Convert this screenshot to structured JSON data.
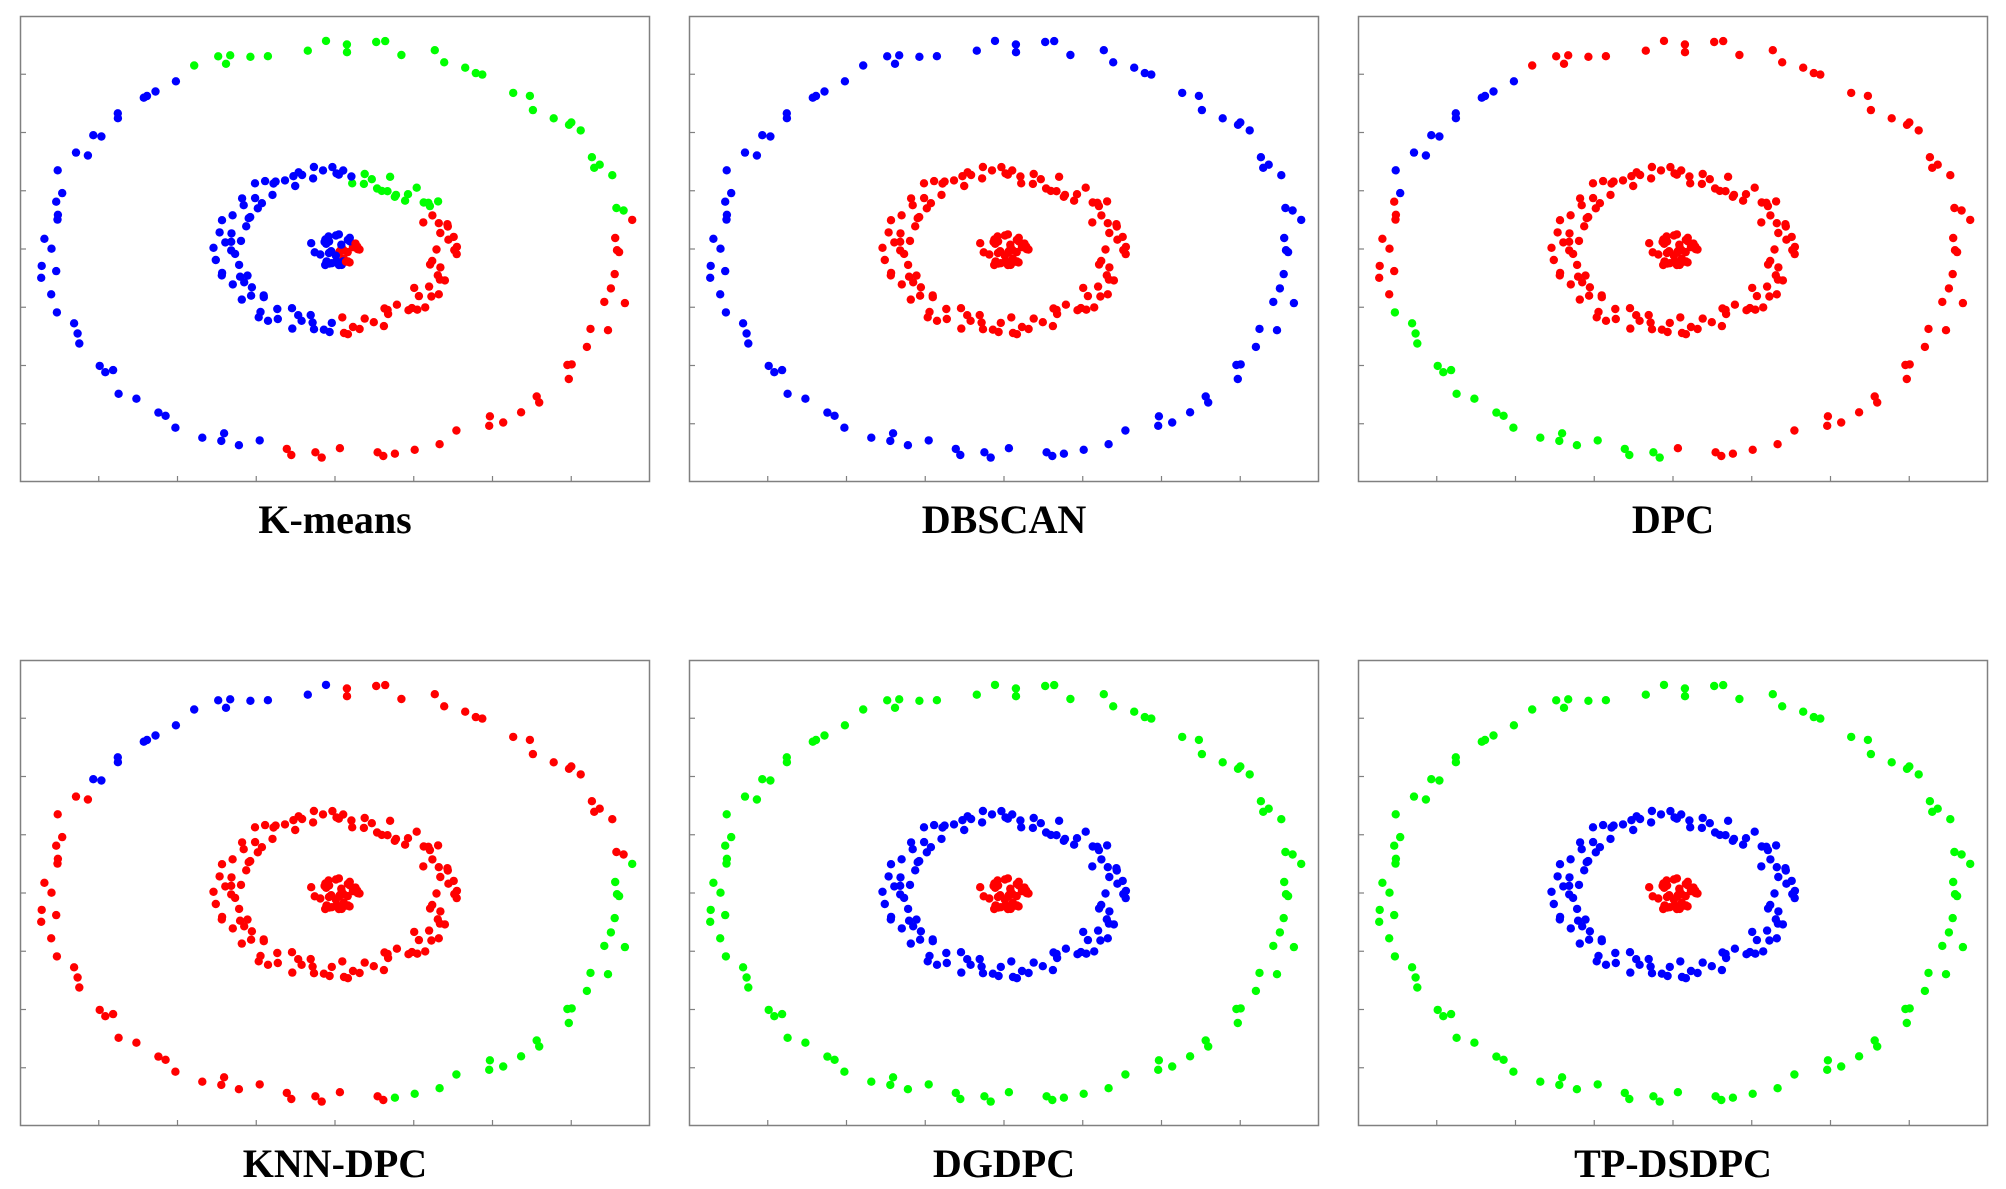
{
  "colors": {
    "red": "#ff0000",
    "blue": "#0000ff",
    "green": "#00ff00",
    "axis": "#808080"
  },
  "cluster_color_order": [
    "red",
    "blue",
    "green"
  ],
  "chart_data": [
    {
      "type": "scatter",
      "title": "K-means",
      "xlim": [
        -7.5,
        7.5
      ],
      "ylim": [
        -7.5,
        7.5
      ],
      "grid": false,
      "rings": [
        {
          "name": "core",
          "radius": 0.3,
          "count": 40
        },
        {
          "name": "inner",
          "radius": 2.6,
          "count": 120
        },
        {
          "name": "outer",
          "radius": 6.9,
          "count": 100
        }
      ],
      "labels": {
        "core": [
          {
            "from": 0,
            "to": 360,
            "cluster": "blue"
          },
          {
            "from": -60,
            "to": 30,
            "cluster": "red"
          }
        ],
        "inner": [
          {
            "from": 0,
            "to": 360,
            "cluster": "blue"
          },
          {
            "from": -90,
            "to": 30,
            "cluster": "red"
          },
          {
            "from": 30,
            "to": 80,
            "cluster": "green"
          }
        ],
        "outer": [
          {
            "from": 0,
            "to": 360,
            "cluster": "blue"
          },
          {
            "from": -100,
            "to": 8,
            "cluster": "red"
          },
          {
            "from": 8,
            "to": 120,
            "cluster": "green"
          }
        ]
      }
    },
    {
      "type": "scatter",
      "title": "DBSCAN",
      "xlim": [
        -7.5,
        7.5
      ],
      "ylim": [
        -7.5,
        7.5
      ],
      "grid": false,
      "rings": [
        {
          "name": "core",
          "radius": 0.3,
          "count": 40
        },
        {
          "name": "inner",
          "radius": 2.6,
          "count": 120
        },
        {
          "name": "outer",
          "radius": 6.9,
          "count": 100
        }
      ],
      "labels": {
        "core": [
          {
            "from": 0,
            "to": 360,
            "cluster": "red"
          }
        ],
        "inner": [
          {
            "from": 0,
            "to": 360,
            "cluster": "red"
          }
        ],
        "outer": [
          {
            "from": 0,
            "to": 360,
            "cluster": "blue"
          }
        ]
      }
    },
    {
      "type": "scatter",
      "title": "DPC",
      "xlim": [
        -7.5,
        7.5
      ],
      "ylim": [
        -7.5,
        7.5
      ],
      "grid": false,
      "rings": [
        {
          "name": "core",
          "radius": 0.3,
          "count": 40
        },
        {
          "name": "inner",
          "radius": 2.6,
          "count": 120
        },
        {
          "name": "outer",
          "radius": 6.9,
          "count": 100
        }
      ],
      "labels": {
        "core": [
          {
            "from": 0,
            "to": 360,
            "cluster": "red"
          }
        ],
        "inner": [
          {
            "from": 0,
            "to": 360,
            "cluster": "red"
          }
        ],
        "outer": [
          {
            "from": 0,
            "to": 360,
            "cluster": "red"
          },
          {
            "from": 120,
            "to": 165,
            "cluster": "blue"
          },
          {
            "from": 195,
            "to": 270,
            "cluster": "green"
          }
        ]
      }
    },
    {
      "type": "scatter",
      "title": "KNN-DPC",
      "xlim": [
        -7.5,
        7.5
      ],
      "ylim": [
        -7.5,
        7.5
      ],
      "grid": false,
      "rings": [
        {
          "name": "core",
          "radius": 0.3,
          "count": 40
        },
        {
          "name": "inner",
          "radius": 2.6,
          "count": 120
        },
        {
          "name": "outer",
          "radius": 6.9,
          "count": 100
        }
      ],
      "labels": {
        "core": [
          {
            "from": 0,
            "to": 360,
            "cluster": "red"
          }
        ],
        "inner": [
          {
            "from": 0,
            "to": 360,
            "cluster": "red"
          }
        ],
        "outer": [
          {
            "from": 0,
            "to": 360,
            "cluster": "red"
          },
          {
            "from": 90,
            "to": 150,
            "cluster": "blue"
          },
          {
            "from": -80,
            "to": 10,
            "cluster": "green"
          }
        ]
      }
    },
    {
      "type": "scatter",
      "title": "DGDPC",
      "xlim": [
        -7.5,
        7.5
      ],
      "ylim": [
        -7.5,
        7.5
      ],
      "grid": false,
      "rings": [
        {
          "name": "core",
          "radius": 0.3,
          "count": 40
        },
        {
          "name": "inner",
          "radius": 2.6,
          "count": 120
        },
        {
          "name": "outer",
          "radius": 6.9,
          "count": 100
        }
      ],
      "labels": {
        "core": [
          {
            "from": 0,
            "to": 360,
            "cluster": "red"
          }
        ],
        "inner": [
          {
            "from": 0,
            "to": 360,
            "cluster": "blue"
          }
        ],
        "outer": [
          {
            "from": 0,
            "to": 360,
            "cluster": "green"
          }
        ]
      }
    },
    {
      "type": "scatter",
      "title": "TP-DSDPC",
      "xlim": [
        -7.5,
        7.5
      ],
      "ylim": [
        -7.5,
        7.5
      ],
      "grid": false,
      "rings": [
        {
          "name": "core",
          "radius": 0.3,
          "count": 40
        },
        {
          "name": "inner",
          "radius": 2.6,
          "count": 120
        },
        {
          "name": "outer",
          "radius": 6.9,
          "count": 100
        }
      ],
      "labels": {
        "core": [
          {
            "from": 0,
            "to": 360,
            "cluster": "red"
          }
        ],
        "inner": [
          {
            "from": 0,
            "to": 360,
            "cluster": "blue"
          }
        ],
        "outer": [
          {
            "from": 0,
            "to": 360,
            "cluster": "green"
          }
        ]
      }
    }
  ]
}
